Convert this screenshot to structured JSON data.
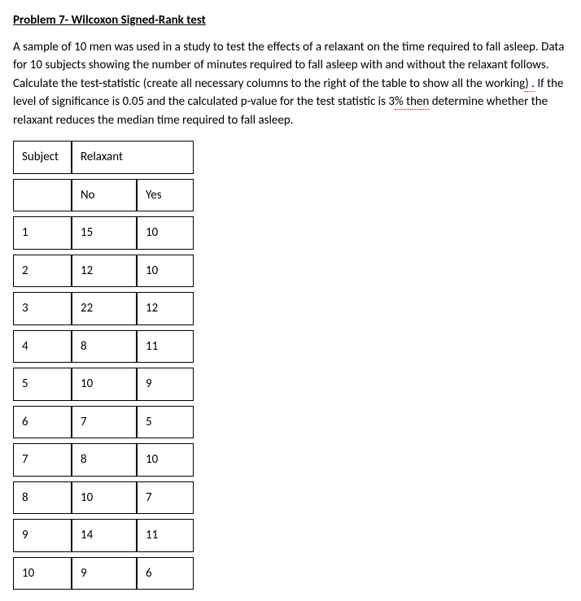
{
  "title": "Problem 7- Wilcoxon Signed-Rank test",
  "description": {
    "part1": "A sample of 10 men was used in a study to test the effects of a relaxant on the time required to fall asleep. Data for 10 subjects showing the number of minutes required to fall asleep with and without the relaxant follows. Calculate the test-statistic (create all necessary columns to the right of the table to show all the working",
    "squiggle1": ") .",
    "part2": " If the level of significance is 0.05 and the calculated p-value for the test statistic is 3",
    "squiggle2": "% then",
    "part3": " determine whether the relaxant reduces the median time required to fall asleep."
  },
  "table": {
    "headers": {
      "subject": "Subject",
      "relaxant": "Relaxant",
      "no": "No",
      "yes": "Yes"
    },
    "rows": [
      {
        "subject": "1",
        "no": "15",
        "yes": "10"
      },
      {
        "subject": "2",
        "no": "12",
        "yes": "10"
      },
      {
        "subject": "3",
        "no": "22",
        "yes": "12"
      },
      {
        "subject": "4",
        "no": "8",
        "yes": "11"
      },
      {
        "subject": "5",
        "no": "10",
        "yes": "9"
      },
      {
        "subject": "6",
        "no": "7",
        "yes": "5"
      },
      {
        "subject": "7",
        "no": "8",
        "yes": "10"
      },
      {
        "subject": "8",
        "no": "10",
        "yes": "7"
      },
      {
        "subject": "9",
        "no": "14",
        "yes": "11"
      },
      {
        "subject": "10",
        "no": "9",
        "yes": "6"
      }
    ]
  }
}
